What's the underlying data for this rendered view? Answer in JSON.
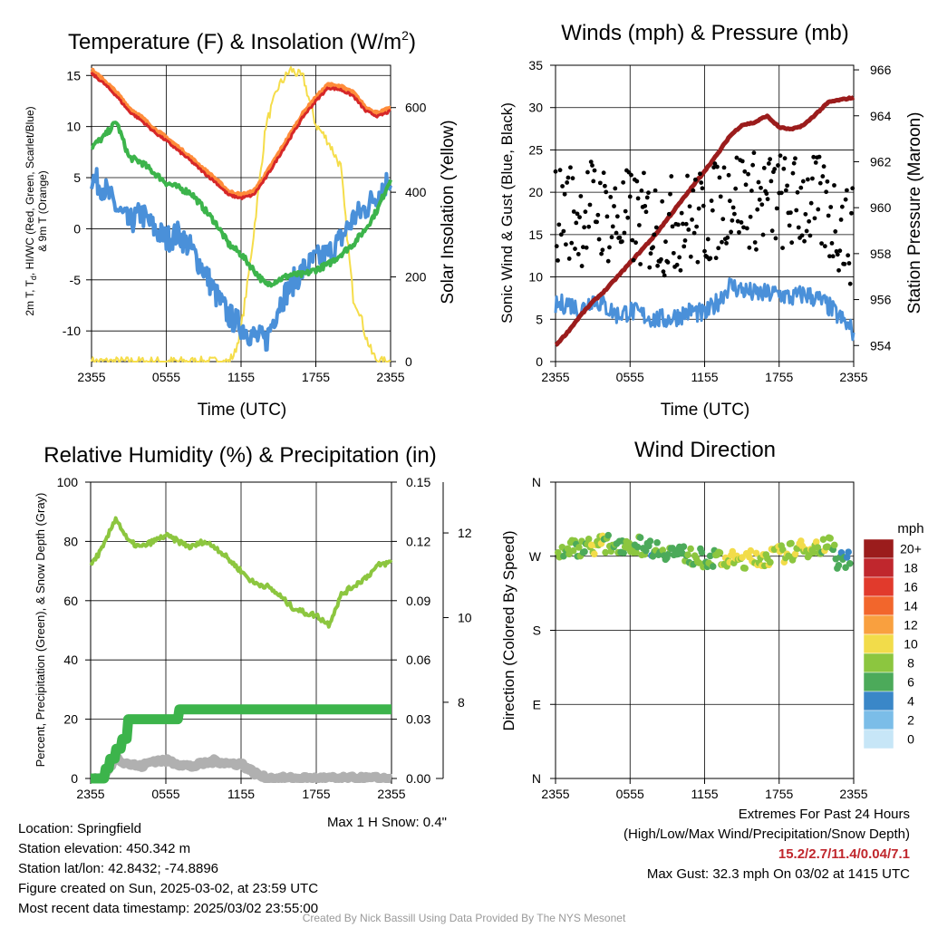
{
  "panels": {
    "temp": {
      "title": "Temperature (F) & Insolation (W/m",
      "title_sup": "2",
      "title_end": ")",
      "ylabel_left_1": "2m T, T",
      "ylabel_left_sub": "d",
      "ylabel_left_2": ", HI/WC (Red, Green, Scarlet/Blue)",
      "ylabel_left_3": "& 9m T (Orange)",
      "ylabel_right": "Solar Insolation (Yellow)",
      "xlabel": "Time (UTC)"
    },
    "wind": {
      "title": "Winds (mph) & Pressure (mb)",
      "ylabel_left": "Sonic Wind & Gust (Blue, Black)",
      "ylabel_right": "Station Pressure (Maroon)",
      "xlabel": "Time (UTC)"
    },
    "rh": {
      "title": "Relative Humidity (%) & Precipitation (in)",
      "ylabel_left": "Percent, Precipitation (Green), & Snow Depth (Gray)",
      "max_snow": "Max 1 H Snow: 0.4\""
    },
    "dir": {
      "title": "Wind Direction",
      "ylabel": "Direction (Colored By Speed)",
      "legend_title": "mph"
    }
  },
  "info": {
    "location": "Location: Springfield",
    "elevation": "Station elevation: 450.342 m",
    "latlon": "Station lat/lon: 42.8432; -74.8896",
    "created": "Figure created on Sun, 2025-03-02, at 23:59 UTC",
    "recent": "Most recent data timestamp: 2025/03/02 23:55:00"
  },
  "extremes": {
    "title": "Extremes For Past 24 Hours",
    "subtitle": "(High/Low/Max Wind/Precipitation/Snow Depth)",
    "values": "15.2/2.7/11.4/0.04/7.1",
    "gust": "Max Gust: 32.3 mph On 03/02 at 1415 UTC"
  },
  "credit": "Created By Nick Bassill Using Data Provided By The NYS Mesonet",
  "colors": {
    "temp": "#d62728",
    "temp9m": "#ff8c3a",
    "dewpoint": "#3cb44b",
    "windchill": "#4a90d9",
    "insolation": "#f5dd4a",
    "wind": "#4a90d9",
    "gust": "#000000",
    "pressure": "#9b1c1c",
    "rh": "#8cc63f",
    "precip": "#3cb44b",
    "snow": "#b0b0b0"
  },
  "chart_data": [
    {
      "type": "line",
      "id": "temp",
      "x_ticks": [
        "2355",
        "0555",
        "1155",
        "1755",
        "2355"
      ],
      "x_hours": [
        0,
        6,
        12,
        18,
        24
      ],
      "ylim": [
        -13,
        16
      ],
      "y_ticks": [
        15,
        10,
        5,
        0,
        -5,
        -10
      ],
      "y2lim": [
        0,
        700
      ],
      "y2_ticks": [
        600,
        400,
        200,
        0
      ],
      "series": [
        {
          "name": "2m T",
          "axis": "left",
          "x": [
            0,
            1,
            2,
            3,
            4,
            5,
            6,
            7,
            8,
            9,
            10,
            11,
            12,
            13,
            14,
            15,
            16,
            17,
            18,
            19,
            20,
            21,
            22,
            23,
            24
          ],
          "values": [
            15.2,
            14.2,
            13.0,
            11.5,
            10.6,
            9.5,
            8.6,
            7.6,
            6.6,
            5.5,
            4.5,
            3.3,
            3.0,
            3.3,
            5.0,
            7.0,
            9.0,
            11.0,
            12.5,
            13.8,
            13.6,
            13.0,
            11.5,
            11.0,
            11.5
          ]
        },
        {
          "name": "9m T",
          "axis": "left",
          "x": [
            0,
            1,
            2,
            3,
            4,
            5,
            6,
            7,
            8,
            9,
            10,
            11,
            12,
            13,
            14,
            15,
            16,
            17,
            18,
            19,
            20,
            21,
            22,
            23,
            24
          ],
          "values": [
            15.5,
            14.5,
            13.3,
            11.8,
            10.9,
            9.8,
            8.9,
            7.9,
            6.9,
            5.8,
            4.8,
            3.6,
            3.3,
            3.6,
            5.3,
            7.3,
            9.3,
            11.3,
            12.8,
            14.1,
            13.9,
            13.3,
            11.8,
            11.3,
            11.8
          ]
        },
        {
          "name": "Dewpoint",
          "axis": "left",
          "x": [
            0,
            1,
            2,
            3,
            4,
            5,
            6,
            7,
            8,
            9,
            10,
            11,
            12,
            13,
            14,
            15,
            16,
            17,
            18,
            19,
            20,
            21,
            22,
            23,
            24
          ],
          "values": [
            8.0,
            9.0,
            10.5,
            7.0,
            6.5,
            5.5,
            4.5,
            4.0,
            3.5,
            2.0,
            0.5,
            -1.5,
            -2.5,
            -4.0,
            -5.5,
            -5.0,
            -4.5,
            -4.5,
            -4.0,
            -3.5,
            -2.5,
            -1.5,
            0.0,
            2.0,
            5.0
          ]
        },
        {
          "name": "Wind Chill",
          "axis": "left",
          "x": [
            0,
            1,
            2,
            3,
            4,
            5,
            6,
            7,
            8,
            9,
            10,
            11,
            12,
            13,
            14,
            15,
            16,
            17,
            18,
            19,
            20,
            21,
            22,
            23,
            24
          ],
          "values": [
            5.0,
            4.0,
            2.0,
            0.5,
            1.5,
            0.0,
            -1.0,
            -0.5,
            -2.0,
            -4.0,
            -6.5,
            -8.5,
            -9.5,
            -10.5,
            -11.0,
            -7.5,
            -5.5,
            -4.0,
            -3.0,
            -2.5,
            -1.0,
            1.0,
            2.0,
            3.5,
            5.0
          ]
        },
        {
          "name": "Solar Insolation",
          "axis": "right",
          "x": [
            0,
            1,
            2,
            3,
            4,
            5,
            6,
            7,
            8,
            9,
            10,
            11,
            11.5,
            12,
            12.5,
            13,
            14,
            15,
            16,
            17,
            18,
            19,
            20,
            20.5,
            21,
            21.5,
            22,
            22.5,
            23,
            24
          ],
          "values": [
            0,
            0,
            0,
            0,
            0,
            0,
            0,
            0,
            0,
            0,
            0,
            0,
            20,
            80,
            180,
            300,
            560,
            650,
            690,
            670,
            560,
            520,
            460,
            300,
            150,
            120,
            60,
            20,
            0,
            0
          ]
        }
      ]
    },
    {
      "type": "line",
      "id": "wind",
      "x_ticks": [
        "2355",
        "0555",
        "1155",
        "1755",
        "2355"
      ],
      "x_hours": [
        0,
        6,
        12,
        18,
        24
      ],
      "ylim": [
        0,
        35
      ],
      "y_ticks": [
        0,
        5,
        10,
        15,
        20,
        25,
        30,
        35
      ],
      "y2lim": [
        953.3,
        966.2
      ],
      "y2_ticks": [
        954,
        956,
        958,
        960,
        962,
        964,
        966
      ],
      "series": [
        {
          "name": "Sonic Wind",
          "axis": "left",
          "x": [
            0,
            1,
            2,
            3,
            4,
            5,
            6,
            7,
            8,
            9,
            10,
            11,
            12,
            13,
            14,
            15,
            16,
            17,
            18,
            19,
            20,
            21,
            22,
            23,
            24
          ],
          "values": [
            6.5,
            7.0,
            6.0,
            7.5,
            6.5,
            5.5,
            6.0,
            5.5,
            5.0,
            5.0,
            5.5,
            6.0,
            5.5,
            7.0,
            9.0,
            8.5,
            8.0,
            8.0,
            8.0,
            7.5,
            8.0,
            7.5,
            6.5,
            5.0,
            3.5
          ]
        },
        {
          "name": "Station Pressure",
          "axis": "right",
          "x": [
            0,
            1,
            2,
            3,
            4,
            5,
            6,
            7,
            8,
            9,
            10,
            11,
            12,
            13,
            14,
            15,
            16,
            17,
            18,
            19,
            20,
            21,
            22,
            23,
            24
          ],
          "values": [
            954.0,
            954.6,
            955.3,
            955.9,
            956.4,
            957.0,
            957.6,
            958.2,
            958.8,
            959.5,
            960.2,
            960.9,
            961.6,
            962.3,
            963.1,
            963.6,
            963.7,
            964.0,
            963.5,
            963.4,
            963.6,
            964.1,
            964.6,
            964.7,
            964.8
          ]
        }
      ]
    },
    {
      "type": "line",
      "id": "rh",
      "x_ticks": [
        "2355",
        "0555",
        "1155",
        "1755",
        "2355"
      ],
      "x_hours": [
        0,
        6,
        12,
        18,
        24
      ],
      "ylim": [
        0,
        100
      ],
      "y_ticks": [
        0,
        20,
        40,
        60,
        80,
        100
      ],
      "y2lim": [
        0,
        0.15
      ],
      "y2_ticks": [
        "0.00",
        "0.03",
        "0.06",
        "0.09",
        "0.12",
        "0.15"
      ],
      "y2_values": [
        0,
        0.03,
        0.06,
        0.09,
        0.12,
        0.15
      ],
      "y3_ticks": [
        "8",
        "10",
        "12"
      ],
      "y3_values": [
        8,
        10,
        12
      ],
      "y3lim": [
        6.2,
        13.2
      ],
      "series": [
        {
          "name": "Relative Humidity",
          "axis": "left",
          "x": [
            0,
            1,
            2,
            3,
            4,
            5,
            6,
            7,
            8,
            9,
            10,
            11,
            12,
            13,
            14,
            15,
            16,
            17,
            18,
            19,
            20,
            21,
            22,
            23,
            24
          ],
          "values": [
            72,
            78,
            88,
            80,
            78,
            80,
            82,
            80,
            78,
            80,
            78,
            74,
            70,
            66,
            65,
            62,
            58,
            56,
            55,
            52,
            62,
            65,
            68,
            72,
            73
          ]
        },
        {
          "name": "Precipitation",
          "axis": "right",
          "x": [
            0,
            0.8,
            1.2,
            1.5,
            2.0,
            2.5,
            3.0,
            3.5,
            6.0,
            7.0,
            12.0,
            18.0,
            24.0
          ],
          "values": [
            0,
            0,
            0.005,
            0.01,
            0.015,
            0.02,
            0.03,
            0.03,
            0.03,
            0.035,
            0.035,
            0.035,
            0.035
          ]
        },
        {
          "name": "Snow Depth",
          "axis": "left",
          "x": [
            0,
            1,
            2,
            3,
            4,
            5,
            6,
            7,
            8,
            9,
            10,
            11,
            12,
            13,
            14,
            15,
            16,
            17,
            18,
            19,
            20,
            21,
            22,
            23,
            24
          ],
          "values": [
            0,
            0,
            7,
            5,
            4,
            6,
            6,
            5,
            4,
            5,
            6,
            5,
            5,
            2,
            0,
            0,
            0,
            0,
            0,
            0,
            0,
            0,
            0,
            0,
            0
          ]
        }
      ],
      "max_snow_label": "Max 1 H Snow: 0.4\""
    },
    {
      "type": "scatter",
      "id": "direction",
      "x_ticks": [
        "2355",
        "0555",
        "1155",
        "1755",
        "2355"
      ],
      "x_hours": [
        0,
        6,
        12,
        18,
        24
      ],
      "ylim": [
        0,
        360
      ],
      "y_ticks": [
        "N",
        "E",
        "S",
        "W",
        "N"
      ],
      "y_values": [
        0,
        90,
        180,
        270,
        360
      ],
      "legend": {
        "labels": [
          "20+",
          "18",
          "16",
          "14",
          "12",
          "10",
          "8",
          "6",
          "4",
          "2",
          "0"
        ],
        "colors": [
          "#9b1c1c",
          "#c0272d",
          "#e13a2c",
          "#f2662c",
          "#f9a03f",
          "#f2dc4a",
          "#8cc63f",
          "#4caa5a",
          "#3a87c8",
          "#7bbde8",
          "#c7e6f7"
        ]
      }
    }
  ]
}
